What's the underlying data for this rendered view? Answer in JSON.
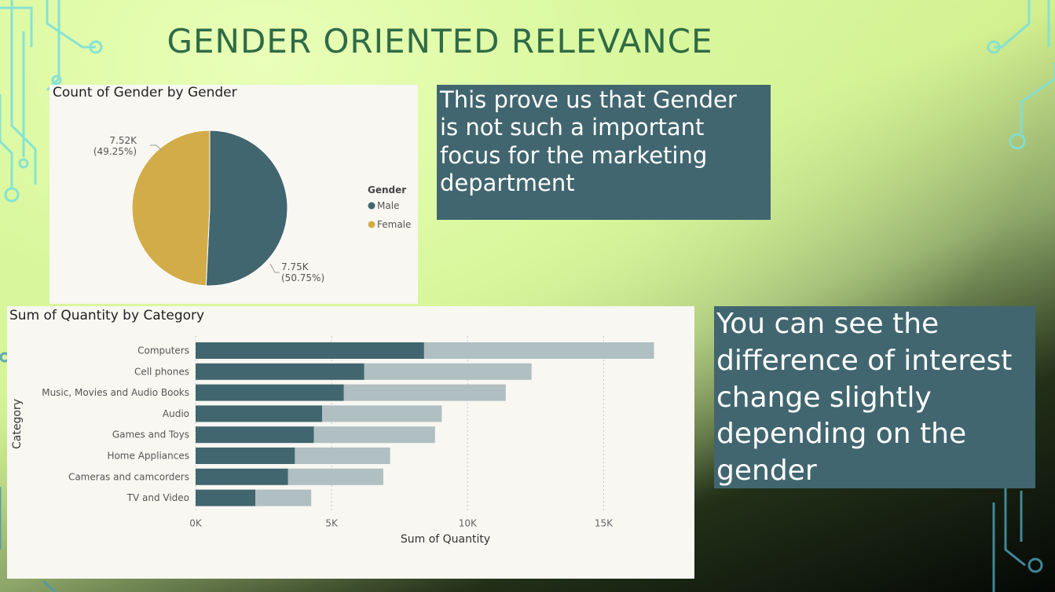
{
  "slide": {
    "title": "GENDER ORIENTED RELEVANCE"
  },
  "colors": {
    "male": "#41666f",
    "female": "#d3ac4a",
    "female_bar": "#b0bfc1",
    "card_bg": "#f8f7f2",
    "callout_bg": "#41666f",
    "title": "#2f6b46"
  },
  "pie_card": {
    "title": "Count of Gender by Gender",
    "legend_title": "Gender",
    "labels": [
      {
        "value": "7.52K",
        "pct": "(49.25%)"
      },
      {
        "value": "7.75K",
        "pct": "(50.75%)"
      }
    ]
  },
  "callouts": {
    "top": [
      "This prove us that Gender",
      "is not such a important",
      "focus for the marketing",
      "department"
    ],
    "bottom": [
      "You can see the",
      "difference of interest",
      "change slightly",
      "depending on the",
      "gender"
    ]
  },
  "bar_card": {
    "title": "Sum of Quantity by Category"
  },
  "chart_data": [
    {
      "type": "pie",
      "title": "Count of Gender by Gender",
      "legend_title": "Gender",
      "legend_position": "right",
      "categories": [
        "Male",
        "Female"
      ],
      "values": [
        7750,
        7520
      ],
      "percentages": [
        50.75,
        49.25
      ],
      "data_labels": [
        "7.75K (50.75%)",
        "7.52K (49.25%)"
      ],
      "colors": [
        "#41666f",
        "#d3ac4a"
      ]
    },
    {
      "type": "bar",
      "orientation": "horizontal",
      "stacked": true,
      "title": "Sum of Quantity by Category",
      "xlabel": "Sum of Quantity",
      "ylabel": "Category",
      "xlim": [
        0,
        17500
      ],
      "xticks": [
        0,
        5000,
        10000,
        15000
      ],
      "xtick_labels": [
        "0K",
        "5K",
        "10K",
        "15K"
      ],
      "grid": true,
      "categories": [
        "Computers",
        "Cell phones",
        "Music, Movies and Audio Books",
        "Audio",
        "Games and Toys",
        "Home Appliances",
        "Cameras and camcorders",
        "TV and Video"
      ],
      "series": [
        {
          "values": [
            8400,
            6200,
            5450,
            4650,
            4350,
            3650,
            3400,
            2200
          ],
          "color": "#41666f"
        },
        {
          "values": [
            8450,
            6150,
            5950,
            4400,
            4450,
            3500,
            3500,
            2050
          ],
          "color": "#b0bfc1"
        }
      ]
    }
  ]
}
